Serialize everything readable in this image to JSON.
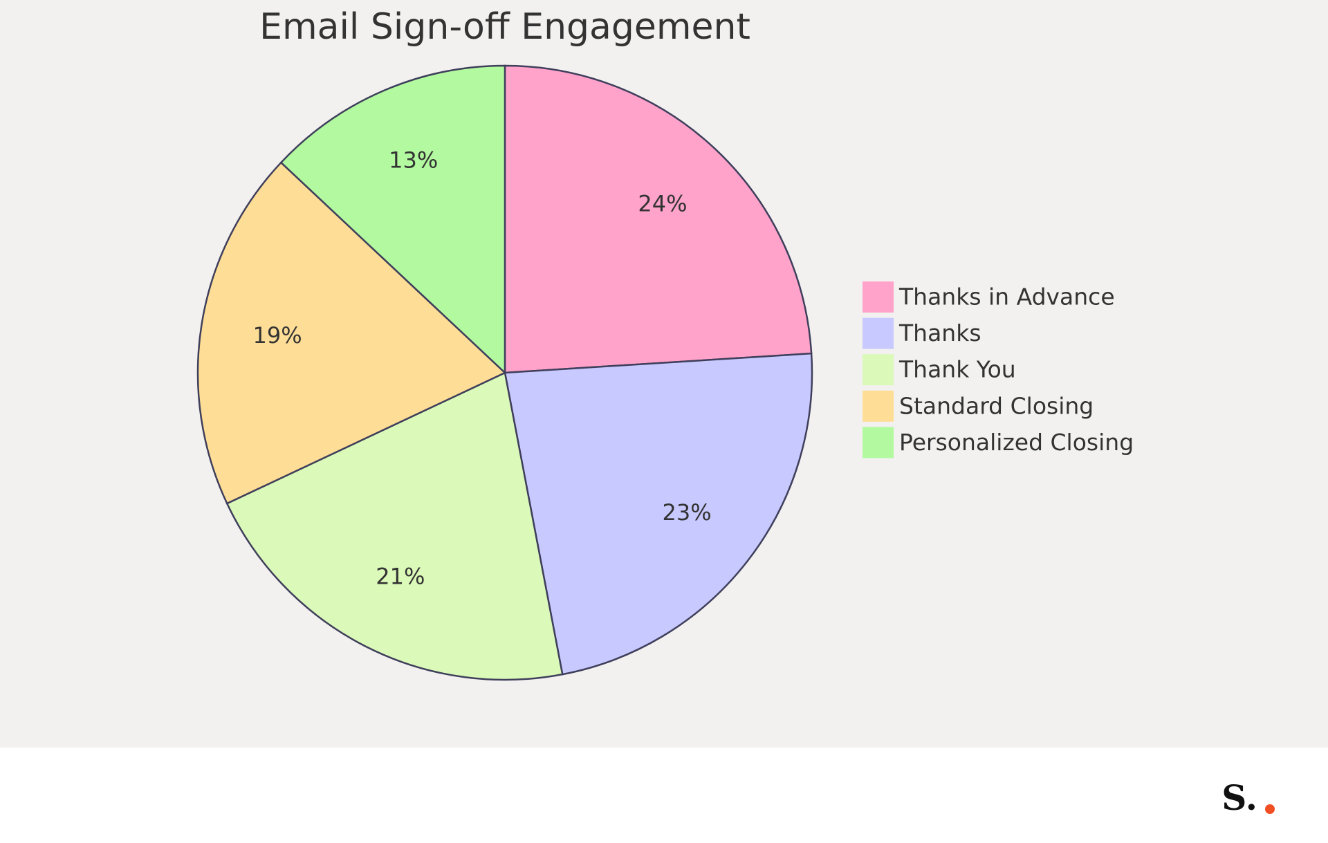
{
  "chart_data": {
    "type": "pie",
    "title": "Email Sign-off Engagement",
    "categories": [
      "Thanks in Advance",
      "Thanks",
      "Thank You",
      "Standard Closing",
      "Personalized Closing"
    ],
    "values": [
      24,
      23,
      21,
      19,
      13
    ],
    "value_labels": [
      "24%",
      "23%",
      "21%",
      "19%",
      "13%"
    ],
    "colors": [
      "#ffa3cb",
      "#c8c9fe",
      "#dbf9b8",
      "#fede96",
      "#b2f9a0"
    ],
    "legend": "right"
  },
  "footer": {
    "logo": "S."
  }
}
